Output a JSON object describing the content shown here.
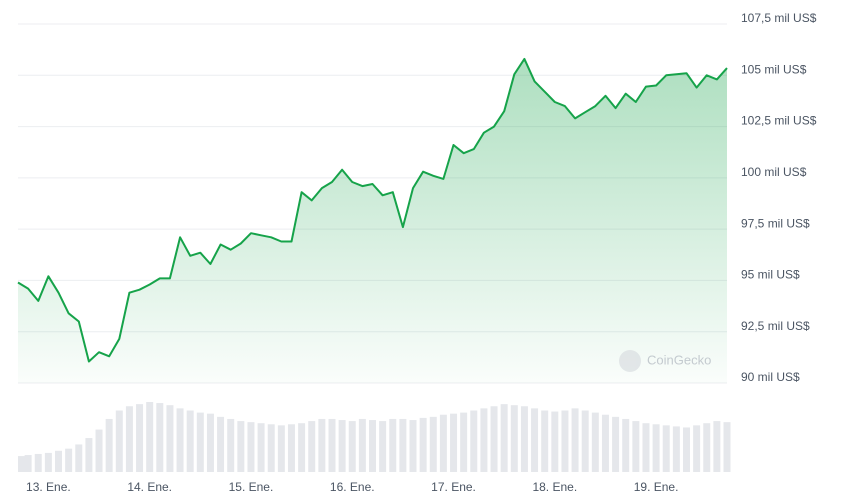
{
  "chart_data": {
    "type": "area",
    "x": [
      12.7,
      12.8,
      12.9,
      13.0,
      13.1,
      13.2,
      13.3,
      13.4,
      13.5,
      13.6,
      13.7,
      13.8,
      13.9,
      14.0,
      14.1,
      14.2,
      14.3,
      14.4,
      14.5,
      14.6,
      14.7,
      14.8,
      14.9,
      15.0,
      15.1,
      15.2,
      15.3,
      15.4,
      15.5,
      15.6,
      15.7,
      15.8,
      15.9,
      16.0,
      16.1,
      16.2,
      16.3,
      16.4,
      16.5,
      16.6,
      16.7,
      16.8,
      16.9,
      17.0,
      17.1,
      17.2,
      17.3,
      17.4,
      17.5,
      17.6,
      17.7,
      17.8,
      17.9,
      18.0,
      18.1,
      18.2,
      18.3,
      18.4,
      18.5,
      18.6,
      18.7,
      18.8,
      18.9,
      19.0,
      19.1,
      19.2,
      19.3,
      19.4,
      19.5,
      19.6,
      19.7
    ],
    "series": [
      {
        "color": "#16a34a",
        "values": [
          94.9,
          94.6,
          94.0,
          95.2,
          94.4,
          93.4,
          93.0,
          91.05,
          91.5,
          91.3,
          92.15,
          94.4,
          94.55,
          94.8,
          95.1,
          95.1,
          97.1,
          96.2,
          96.35,
          95.8,
          96.75,
          96.5,
          96.8,
          97.3,
          97.2,
          97.1,
          96.9,
          96.9,
          99.3,
          98.9,
          99.5,
          99.8,
          100.4,
          99.8,
          99.6,
          99.7,
          99.15,
          99.3,
          97.6,
          99.5,
          100.3,
          100.1,
          99.95,
          101.6,
          101.2,
          101.4,
          102.2,
          102.5,
          103.25,
          105.05,
          105.8,
          104.7,
          104.2,
          103.7,
          103.5,
          102.9,
          103.2,
          103.5,
          104.0,
          103.4,
          104.1,
          103.7,
          104.45,
          104.5,
          105.0,
          105.05,
          105.1,
          104.4,
          105.0,
          104.8,
          105.35
        ]
      },
      {
        "type": "bar",
        "color": "#e5e7eb",
        "values": [
          15,
          16,
          17,
          18,
          20,
          22,
          26,
          32,
          40,
          50,
          58,
          62,
          64,
          66,
          65,
          63,
          60,
          58,
          56,
          55,
          52,
          50,
          48,
          47,
          46,
          45,
          44,
          45,
          46,
          48,
          50,
          50,
          49,
          48,
          50,
          49,
          48,
          50,
          50,
          49,
          51,
          52,
          54,
          55,
          56,
          58,
          60,
          62,
          64,
          63,
          62,
          60,
          58,
          57,
          58,
          60,
          58,
          56,
          54,
          52,
          50,
          48,
          46,
          45,
          44,
          43,
          42,
          44,
          46,
          48,
          47
        ]
      }
    ],
    "xlim": [
      12.7,
      19.7
    ],
    "xticks": [
      {
        "value": 13,
        "label": "13. Ene."
      },
      {
        "value": 14,
        "label": "14. Ene."
      },
      {
        "value": 15,
        "label": "15. Ene."
      },
      {
        "value": 16,
        "label": "16. Ene."
      },
      {
        "value": 17,
        "label": "17. Ene."
      },
      {
        "value": 18,
        "label": "18. Ene."
      },
      {
        "value": 19,
        "label": "19. Ene."
      }
    ],
    "ylim": [
      90,
      107.5
    ],
    "yticks": [
      {
        "value": 90,
        "label": "90 mil US$"
      },
      {
        "value": 92.5,
        "label": "92,5 mil US$"
      },
      {
        "value": 95,
        "label": "95 mil US$"
      },
      {
        "value": 97.5,
        "label": "97,5 mil US$"
      },
      {
        "value": 100,
        "label": "100 mil US$"
      },
      {
        "value": 102.5,
        "label": "102,5 mil US$"
      },
      {
        "value": 105,
        "label": "105 mil US$"
      },
      {
        "value": 107.5,
        "label": "107,5 mil US$"
      }
    ],
    "grid": true,
    "watermark": "CoinGecko"
  }
}
